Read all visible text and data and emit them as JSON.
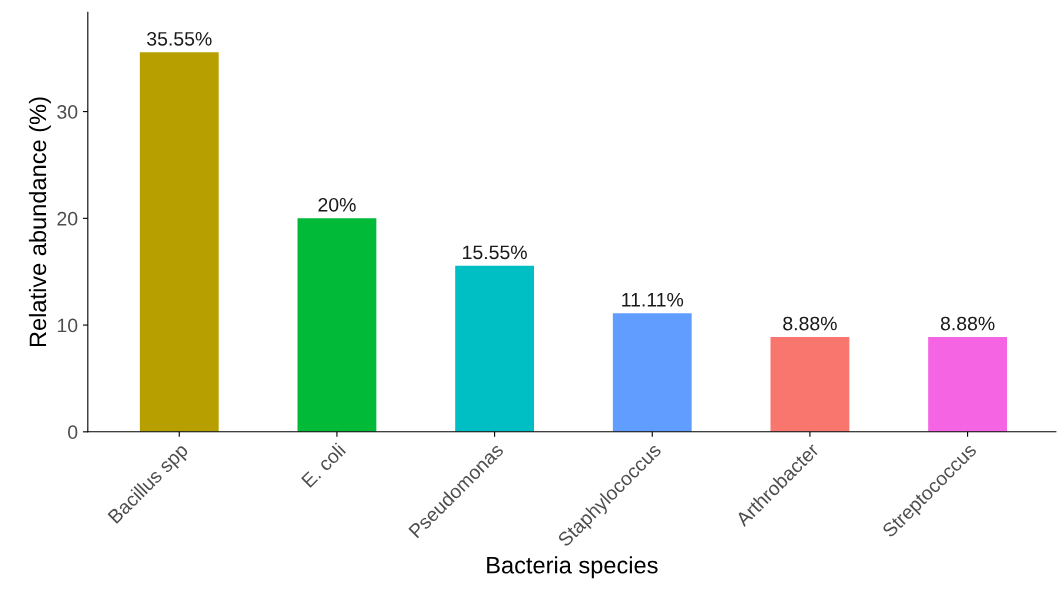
{
  "chart_data": {
    "type": "bar",
    "xlabel": "Bacteria species",
    "ylabel": "Relative abundance (%)",
    "categories": [
      "Bacillus spp",
      "E. coli",
      "Pseudomonas",
      "Staphylococcus",
      "Arthrobacter",
      "Streptococcus"
    ],
    "values": [
      35.55,
      20,
      15.55,
      11.11,
      8.88,
      8.88
    ],
    "colors": [
      "#b79f00",
      "#00ba38",
      "#00bfc4",
      "#619cff",
      "#f8766d",
      "#f564e3"
    ],
    "value_labels": [
      "35.55%",
      "20%",
      "15.55%",
      "11.11%",
      "8.88%",
      "8.88%"
    ],
    "ylim": [
      0,
      39.3
    ],
    "yticks": [
      0,
      10,
      20,
      30
    ],
    "grid": false,
    "legend": false
  }
}
